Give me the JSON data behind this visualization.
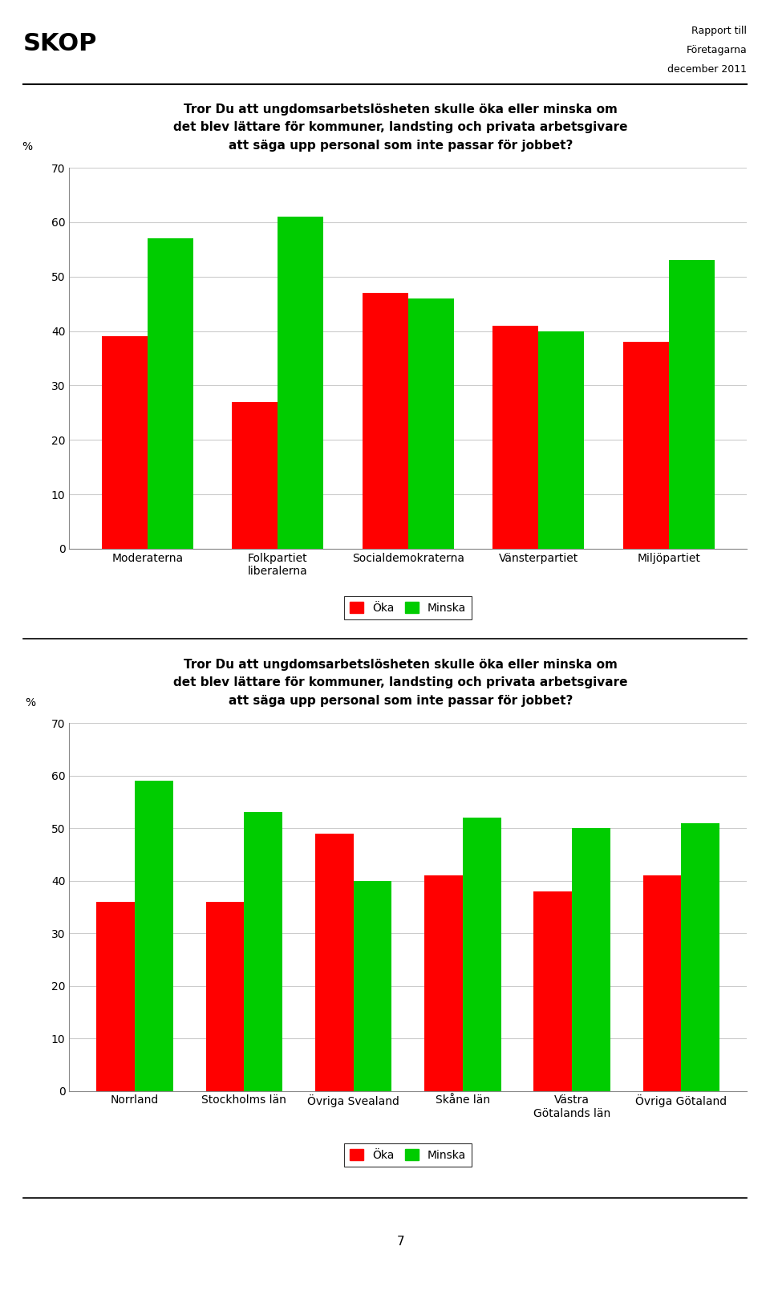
{
  "title_line1": "Tror Du att ungdomsarbetslösheten skulle öka eller minska om",
  "title_line2": "det blev lättare för kommuner, landsting och privata arbetsgivare",
  "title_line3": "att säga upp personal som inte passar för jobbet?",
  "header_left": "SKOP",
  "header_right_line1": "Rapport till",
  "header_right_line2": "Företagarna",
  "header_right_line3": "december 2011",
  "ylabel": "%",
  "ylim": [
    0,
    70
  ],
  "yticks": [
    0,
    10,
    20,
    30,
    40,
    50,
    60,
    70
  ],
  "chart1": {
    "categories": [
      "Moderaterna",
      "Folkpartiet\nliberalerna",
      "Socialdemokraterna",
      "Vänsterpartiet",
      "Miljöpartiet"
    ],
    "oka": [
      39,
      27,
      47,
      41,
      38
    ],
    "minska": [
      57,
      61,
      46,
      40,
      53
    ]
  },
  "chart2": {
    "categories": [
      "Norrland",
      "Stockholms län",
      "Övriga Svealand",
      "Skåne län",
      "Västra\nGötalands län",
      "Övriga Götaland"
    ],
    "oka": [
      36,
      36,
      49,
      41,
      38,
      41
    ],
    "minska": [
      59,
      53,
      40,
      52,
      50,
      51
    ]
  },
  "legend_oka": "Öka",
  "legend_minska": "Minska",
  "color_oka": "#ff0000",
  "color_minska": "#00cc00",
  "bar_width": 0.35,
  "bg_color": "#ffffff",
  "grid_color": "#cccccc",
  "page_number": "7"
}
